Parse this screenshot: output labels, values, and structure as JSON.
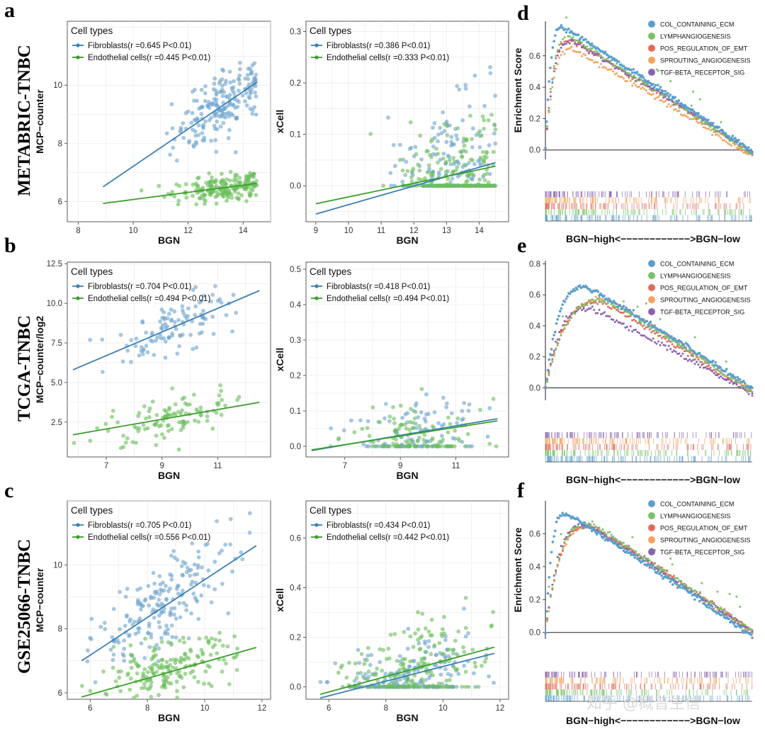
{
  "colors": {
    "fibroblasts": "#3b7fb6",
    "endothelial": "#3a9e2a",
    "fib_point": "#6fa4cf",
    "endo_point": "#6cbf5c",
    "gsea": [
      "#5b9fce",
      "#79c36a",
      "#e06c5d",
      "#f2a35c",
      "#8a63b0"
    ]
  },
  "panel_letters": [
    "a",
    "b",
    "c",
    "d",
    "e",
    "f"
  ],
  "row_labels": [
    "METABRIC-TNBC",
    "TCGA-TNBC",
    "GSE25066-TNBC"
  ],
  "legend_title": "Cell types",
  "watermark": "知乎 @概普生信",
  "chart_data": [
    {
      "type": "scatter",
      "id": "a-left",
      "xlabel": "BGN",
      "ylabel": "MCP−counter",
      "xlim": [
        7.6,
        15.0
      ],
      "ylim": [
        5.3,
        12.2
      ],
      "xticks": [
        8,
        10,
        12,
        14
      ],
      "yticks": [
        6,
        8,
        10
      ],
      "legend_title": "Cell types",
      "series": [
        {
          "name": "Fibroblasts",
          "legend": "Fibroblasts(r =0.645 P<0.01)",
          "fit": [
            [
              8.9,
              6.5
            ],
            [
              14.5,
              10.1
            ]
          ],
          "cloud": {
            "xr": [
              8.9,
              14.5
            ],
            "xmean": 13.3,
            "xsd": 0.9,
            "resid": 0.55,
            "n": 200
          }
        },
        {
          "name": "Endothelial cells",
          "legend": "Endothelial cells(r =0.445 P<0.01)",
          "fit": [
            [
              8.9,
              5.93
            ],
            [
              14.5,
              6.62
            ]
          ],
          "cloud": {
            "xr": [
              8.9,
              14.5
            ],
            "xmean": 13.3,
            "xsd": 0.9,
            "resid": 0.22,
            "n": 200
          }
        }
      ]
    },
    {
      "type": "scatter",
      "id": "a-right",
      "xlabel": "BGN",
      "ylabel": "xCell",
      "xlim": [
        8.7,
        14.9
      ],
      "ylim": [
        -0.07,
        0.32
      ],
      "xticks": [
        9,
        10,
        11,
        12,
        13,
        14
      ],
      "yticks": [
        0.0,
        0.1,
        0.2,
        0.3
      ],
      "legend_title": "Cell types",
      "series": [
        {
          "name": "Fibroblasts",
          "legend": "Fibroblasts(r =0.386 P<0.01)",
          "fit": [
            [
              9.0,
              -0.055
            ],
            [
              14.5,
              0.045
            ]
          ],
          "cloud": {
            "xr": [
              9.0,
              14.5
            ],
            "xmean": 13.3,
            "xsd": 0.9,
            "resid": 0.06,
            "n": 200,
            "zero": 0.45
          }
        },
        {
          "name": "Endothelial cells",
          "legend": "Endothelial cells(r =0.333 P<0.01)",
          "fit": [
            [
              9.0,
              -0.035
            ],
            [
              14.5,
              0.038
            ]
          ],
          "cloud": {
            "xr": [
              9.0,
              14.5
            ],
            "xmean": 13.3,
            "xsd": 0.9,
            "resid": 0.05,
            "n": 200,
            "zero": 0.45
          }
        }
      ]
    },
    {
      "type": "scatter",
      "id": "b-left",
      "xlabel": "BGN",
      "ylabel": "MCP−counter/log2",
      "xlim": [
        5.6,
        12.9
      ],
      "ylim": [
        0.3,
        12.6
      ],
      "xticks": [
        7,
        9,
        11
      ],
      "yticks": [
        2.5,
        5.0,
        7.5,
        10.0,
        12.5
      ],
      "legend_title": "Cell types",
      "series": [
        {
          "name": "Fibroblasts",
          "legend": "Fibroblasts(r =0.704 P<0.01)",
          "fit": [
            [
              5.8,
              5.8
            ],
            [
              12.5,
              10.8
            ]
          ],
          "cloud": {
            "xr": [
              5.8,
              12.6
            ],
            "xmean": 9.3,
            "xsd": 1.1,
            "resid": 0.85,
            "n": 110
          }
        },
        {
          "name": "Endothelial cells",
          "legend": "Endothelial cells(r =0.494 P<0.01)",
          "fit": [
            [
              5.8,
              1.7
            ],
            [
              12.5,
              3.75
            ]
          ],
          "cloud": {
            "xr": [
              5.8,
              12.6
            ],
            "xmean": 9.3,
            "xsd": 1.1,
            "resid": 0.7,
            "n": 110
          }
        }
      ]
    },
    {
      "type": "scatter",
      "id": "b-right",
      "xlabel": "BGN",
      "ylabel": "xCell",
      "xlim": [
        5.6,
        12.9
      ],
      "ylim": [
        -0.03,
        0.52
      ],
      "xticks": [
        7,
        9,
        11
      ],
      "yticks": [
        0.0,
        0.1,
        0.2,
        0.3,
        0.4,
        0.5
      ],
      "legend_title": "Cell types",
      "series": [
        {
          "name": "Fibroblasts",
          "legend": "Fibroblasts(r =0.418 P<0.01)",
          "fit": [
            [
              5.8,
              -0.012
            ],
            [
              12.5,
              0.078
            ]
          ],
          "cloud": {
            "xr": [
              5.8,
              12.6
            ],
            "xmean": 9.6,
            "xsd": 1.1,
            "resid": 0.045,
            "n": 110,
            "zero": 0.35
          }
        },
        {
          "name": "Endothelial cells",
          "legend": "Endothelial cells(r =0.494 P<0.01)",
          "fit": [
            [
              5.8,
              -0.01
            ],
            [
              12.5,
              0.072
            ]
          ],
          "cloud": {
            "xr": [
              5.8,
              12.6
            ],
            "xmean": 9.6,
            "xsd": 1.1,
            "resid": 0.045,
            "n": 110,
            "zero": 0.35
          }
        }
      ]
    },
    {
      "type": "scatter",
      "id": "c-left",
      "xlabel": "BGN",
      "ylabel": "MCP−counter",
      "xlim": [
        5.2,
        12.3
      ],
      "ylim": [
        5.8,
        12.0
      ],
      "xticks": [
        6,
        8,
        10,
        12
      ],
      "yticks": [
        6,
        8,
        10
      ],
      "legend_title": "Cell types",
      "series": [
        {
          "name": "Fibroblasts",
          "legend": "Fibroblasts(r =0.705 P<0.01)",
          "fit": [
            [
              5.7,
              7.0
            ],
            [
              11.8,
              10.6
            ]
          ],
          "cloud": {
            "xr": [
              5.7,
              11.8
            ],
            "xmean": 8.6,
            "xsd": 1.2,
            "resid": 0.7,
            "n": 200
          }
        },
        {
          "name": "Endothelial cells",
          "legend": "Endothelial cells(r =0.556 P<0.01)",
          "fit": [
            [
              5.7,
              5.87
            ],
            [
              11.8,
              7.42
            ]
          ],
          "cloud": {
            "xr": [
              5.7,
              11.8
            ],
            "xmean": 8.6,
            "xsd": 1.2,
            "resid": 0.45,
            "n": 200
          }
        }
      ]
    },
    {
      "type": "scatter",
      "id": "c-right",
      "xlabel": "BGN",
      "ylabel": "xCell",
      "xlim": [
        5.2,
        12.3
      ],
      "ylim": [
        -0.05,
        0.75
      ],
      "xticks": [
        6,
        8,
        10,
        12
      ],
      "yticks": [
        0.0,
        0.2,
        0.4,
        0.6
      ],
      "legend_title": "Cell types",
      "series": [
        {
          "name": "Fibroblasts",
          "legend": "Fibroblasts(r =0.434 P<0.01)",
          "fit": [
            [
              5.7,
              -0.045
            ],
            [
              11.8,
              0.135
            ]
          ],
          "cloud": {
            "xr": [
              5.7,
              11.8
            ],
            "xmean": 9.0,
            "xsd": 1.2,
            "resid": 0.07,
            "n": 200,
            "zero": 0.35
          }
        },
        {
          "name": "Endothelial cells",
          "legend": "Endothelial cells(r =0.442 P<0.01)",
          "fit": [
            [
              5.7,
              -0.03
            ],
            [
              11.8,
              0.16
            ]
          ],
          "cloud": {
            "xr": [
              5.7,
              11.8
            ],
            "xmean": 9.0,
            "xsd": 1.2,
            "resid": 0.075,
            "n": 200,
            "zero": 0.35
          }
        }
      ]
    },
    {
      "type": "line",
      "id": "d",
      "ylabel": "Enrichment Score",
      "xlabel": "BGN−high<−−−−−−−−−−−−>BGN−low",
      "ylim": [
        -0.06,
        0.82
      ],
      "yticks": [
        0.0,
        0.2,
        0.4,
        0.6
      ],
      "series": [
        {
          "name": "COL_CONTAINING_ECM",
          "peak": 0.78,
          "peak_at": 0.08,
          "end": -0.01
        },
        {
          "name": "LYMPHANGIOGENESIS",
          "peak": 0.72,
          "peak_at": 0.12,
          "end": -0.03
        },
        {
          "name": "POS_REGULATION_OF_EMT",
          "peak": 0.7,
          "peak_at": 0.12,
          "end": -0.02
        },
        {
          "name": "SPROUTING_ANGIOGENESIS",
          "peak": 0.64,
          "peak_at": 0.13,
          "end": -0.04
        },
        {
          "name": "TGF-BETA_RECEPTOR_SIG",
          "peak": 0.69,
          "peak_at": 0.13,
          "end": -0.01
        }
      ]
    },
    {
      "type": "line",
      "id": "e",
      "ylabel": "",
      "xlabel": "BGN−high<−−−−−−−−−−−−>BGN−low",
      "ylim": [
        -0.08,
        0.82
      ],
      "yticks": [
        0.0,
        0.2,
        0.4,
        0.6,
        0.8
      ],
      "series": [
        {
          "name": "COL_CONTAINING_ECM",
          "peak": 0.65,
          "peak_at": 0.2,
          "end": 0.0
        },
        {
          "name": "LYMPHANGIOGENESIS",
          "peak": 0.56,
          "peak_at": 0.3,
          "end": -0.03
        },
        {
          "name": "POS_REGULATION_OF_EMT",
          "peak": 0.55,
          "peak_at": 0.28,
          "end": -0.04
        },
        {
          "name": "SPROUTING_ANGIOGENESIS",
          "peak": 0.57,
          "peak_at": 0.3,
          "end": -0.02
        },
        {
          "name": "TGF-BETA_RECEPTOR_SIG",
          "peak": 0.51,
          "peak_at": 0.22,
          "end": -0.04
        }
      ]
    },
    {
      "type": "line",
      "id": "f",
      "ylabel": "Enrichment Score",
      "xlabel": "BGN−high<−−−−−−−−−−−−>BGN−low",
      "ylim": [
        -0.04,
        0.8
      ],
      "yticks": [
        0.0,
        0.2,
        0.4,
        0.6
      ],
      "series": [
        {
          "name": "COL_CONTAINING_ECM",
          "peak": 0.72,
          "peak_at": 0.1,
          "end": -0.02
        },
        {
          "name": "LYMPHANGIOGENESIS",
          "peak": 0.66,
          "peak_at": 0.22,
          "end": 0.01
        },
        {
          "name": "POS_REGULATION_OF_EMT",
          "peak": 0.65,
          "peak_at": 0.22,
          "end": 0.01
        },
        {
          "name": "SPROUTING_ANGIOGENESIS",
          "peak": 0.64,
          "peak_at": 0.22,
          "end": 0.0
        },
        {
          "name": "TGF-BETA_RECEPTOR_SIG",
          "peak": 0.65,
          "peak_at": 0.2,
          "end": 0.0
        }
      ]
    }
  ]
}
